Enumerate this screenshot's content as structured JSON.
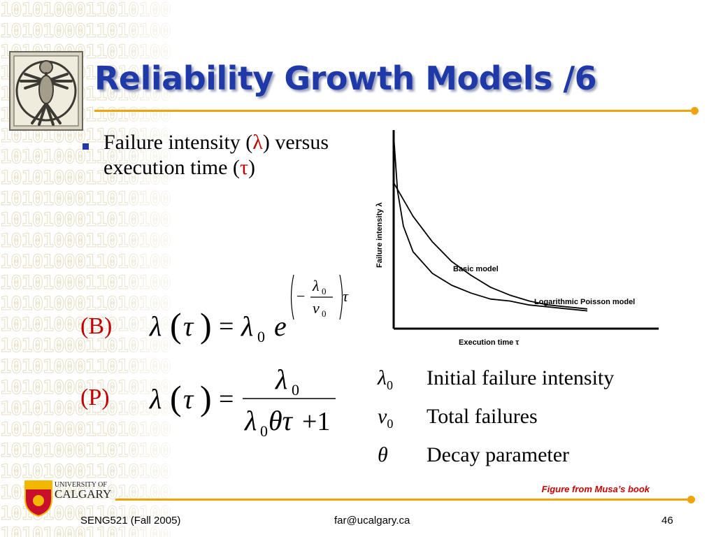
{
  "slide": {
    "title": "Reliability Growth Models /6",
    "bullet": {
      "pre": "Failure intensity (",
      "lambda": "λ",
      "mid": ") versus execution time (",
      "tau": "τ",
      "post": ")"
    },
    "model_b": {
      "label": "(B)",
      "lhs": "λ",
      "arg": "τ",
      "equals": "=",
      "coef": "λ",
      "coef_sub": "0",
      "base": "e",
      "exp_minus": "−",
      "exp_num": "λ",
      "exp_num_sub": "0",
      "exp_den": "ν",
      "exp_den_sub": "0",
      "exp_var": "τ"
    },
    "model_p": {
      "label": "(P)",
      "lhs": "λ",
      "arg": "τ",
      "equals": "=",
      "num": "λ",
      "num_sub": "0",
      "den_l": "λ",
      "den_sub": "0",
      "den_rest": "θτ",
      "den_plus": "+1"
    },
    "legend": [
      {
        "symbol": "λ",
        "sub": "0",
        "text": "Initial failure intensity"
      },
      {
        "symbol": "ν",
        "sub": "0",
        "text": "Total failures"
      },
      {
        "symbol": "θ",
        "sub": "",
        "text": "Decay parameter"
      }
    ],
    "figure_credit": "Figure from Musa’s book",
    "footer": {
      "left": "SENG521 (Fall 2005)",
      "center": "far@ucalgary.ca",
      "right": "46"
    },
    "university": {
      "line1": "UNIVERSITY OF",
      "line2": "CALGARY"
    },
    "background_text": "1010100011010100",
    "colors": {
      "title": "#1f3aa8",
      "accent": "#f0a30a",
      "label": "#c00000",
      "credit": "#cc0000"
    }
  },
  "chart_data": {
    "type": "line",
    "xlabel": "Execution time τ",
    "ylabel": "Failure intensity λ",
    "series": [
      {
        "name": "Basic model",
        "points": [
          [
            0,
            0.74
          ],
          [
            0.1,
            0.57
          ],
          [
            0.2,
            0.44
          ],
          [
            0.3,
            0.34
          ],
          [
            0.4,
            0.27
          ],
          [
            0.5,
            0.21
          ],
          [
            0.6,
            0.17
          ],
          [
            0.7,
            0.14
          ],
          [
            0.8,
            0.12
          ],
          [
            0.9,
            0.11
          ],
          [
            1.0,
            0.1
          ]
        ]
      },
      {
        "name": "Logarithmic Poisson model",
        "points": [
          [
            0,
            0.98
          ],
          [
            0.02,
            0.7
          ],
          [
            0.05,
            0.52
          ],
          [
            0.1,
            0.39
          ],
          [
            0.2,
            0.28
          ],
          [
            0.3,
            0.22
          ],
          [
            0.4,
            0.18
          ],
          [
            0.5,
            0.15
          ],
          [
            0.6,
            0.14
          ],
          [
            0.7,
            0.12
          ],
          [
            0.8,
            0.11
          ],
          [
            0.9,
            0.1
          ],
          [
            1.0,
            0.09
          ]
        ]
      }
    ],
    "xlim": [
      0,
      1
    ],
    "ylim": [
      0,
      1
    ]
  }
}
